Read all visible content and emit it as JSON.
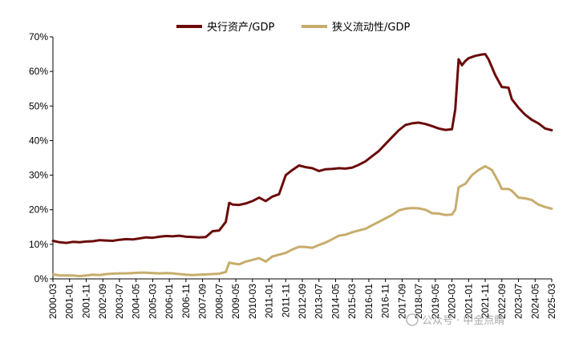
{
  "chart_data": {
    "type": "line",
    "title": "",
    "xlabel": "",
    "ylabel": "",
    "ylim": [
      0,
      70
    ],
    "y_ticks": [
      "0%",
      "10%",
      "20%",
      "30%",
      "40%",
      "50%",
      "60%",
      "70%"
    ],
    "x_ticks": [
      "2000-03",
      "2001-01",
      "2001-11",
      "2002-09",
      "2003-07",
      "2004-05",
      "2005-03",
      "2006-01",
      "2006-11",
      "2007-09",
      "2008-07",
      "2009-05",
      "2010-03",
      "2011-01",
      "2011-11",
      "2012-09",
      "2013-07",
      "2014-05",
      "2015-03",
      "2016-01",
      "2016-11",
      "2017-09",
      "2018-07",
      "2019-05",
      "2020-03",
      "2021-01",
      "2021-11",
      "2022-09",
      "2023-07",
      "2024-05",
      "2025-03"
    ],
    "x_range": [
      "2000-03",
      "2025-03"
    ],
    "grid": false,
    "legend_position": "top-center",
    "series": [
      {
        "name": "央行资产/GDP",
        "color": "#6b0a0a",
        "points": [
          [
            "2000-03",
            11.0
          ],
          [
            "2000-07",
            10.6
          ],
          [
            "2000-11",
            10.4
          ],
          [
            "2001-03",
            10.7
          ],
          [
            "2001-07",
            10.6
          ],
          [
            "2001-11",
            10.8
          ],
          [
            "2002-03",
            10.9
          ],
          [
            "2002-07",
            11.2
          ],
          [
            "2002-11",
            11.1
          ],
          [
            "2003-03",
            11.0
          ],
          [
            "2003-07",
            11.3
          ],
          [
            "2003-11",
            11.5
          ],
          [
            "2004-03",
            11.4
          ],
          [
            "2004-07",
            11.7
          ],
          [
            "2004-11",
            12.0
          ],
          [
            "2005-03",
            11.9
          ],
          [
            "2005-07",
            12.2
          ],
          [
            "2005-11",
            12.4
          ],
          [
            "2006-03",
            12.3
          ],
          [
            "2006-07",
            12.5
          ],
          [
            "2006-11",
            12.2
          ],
          [
            "2007-03",
            12.1
          ],
          [
            "2007-07",
            12.0
          ],
          [
            "2007-11",
            12.1
          ],
          [
            "2008-03",
            13.8
          ],
          [
            "2008-07",
            14.0
          ],
          [
            "2008-11",
            16.5
          ],
          [
            "2009-01",
            22.0
          ],
          [
            "2009-03",
            21.5
          ],
          [
            "2009-07",
            21.4
          ],
          [
            "2009-11",
            21.8
          ],
          [
            "2010-03",
            22.5
          ],
          [
            "2010-07",
            23.5
          ],
          [
            "2010-11",
            22.5
          ],
          [
            "2011-03",
            23.8
          ],
          [
            "2011-07",
            24.5
          ],
          [
            "2011-11",
            30.0
          ],
          [
            "2012-03",
            31.5
          ],
          [
            "2012-07",
            32.8
          ],
          [
            "2012-11",
            32.3
          ],
          [
            "2013-03",
            32.0
          ],
          [
            "2013-07",
            31.2
          ],
          [
            "2013-11",
            31.7
          ],
          [
            "2014-03",
            31.8
          ],
          [
            "2014-07",
            32.0
          ],
          [
            "2014-11",
            31.9
          ],
          [
            "2015-03",
            32.2
          ],
          [
            "2015-07",
            33.0
          ],
          [
            "2015-11",
            34.0
          ],
          [
            "2016-03",
            35.5
          ],
          [
            "2016-07",
            37.0
          ],
          [
            "2016-11",
            39.0
          ],
          [
            "2017-03",
            41.0
          ],
          [
            "2017-07",
            43.0
          ],
          [
            "2017-11",
            44.5
          ],
          [
            "2018-03",
            45.0
          ],
          [
            "2018-07",
            45.2
          ],
          [
            "2018-11",
            44.8
          ],
          [
            "2019-03",
            44.2
          ],
          [
            "2019-07",
            43.5
          ],
          [
            "2019-11",
            43.1
          ],
          [
            "2020-03",
            43.3
          ],
          [
            "2020-05",
            49.0
          ],
          [
            "2020-07",
            63.5
          ],
          [
            "2020-09",
            61.8
          ],
          [
            "2020-11",
            63.0
          ],
          [
            "2021-01",
            63.8
          ],
          [
            "2021-05",
            64.5
          ],
          [
            "2021-09",
            64.9
          ],
          [
            "2021-11",
            65.0
          ],
          [
            "2022-01",
            63.5
          ],
          [
            "2022-05",
            59.0
          ],
          [
            "2022-09",
            55.5
          ],
          [
            "2023-01",
            55.3
          ],
          [
            "2023-03",
            52.0
          ],
          [
            "2023-07",
            49.5
          ],
          [
            "2023-11",
            47.5
          ],
          [
            "2024-03",
            46.0
          ],
          [
            "2024-07",
            45.0
          ],
          [
            "2024-11",
            43.5
          ],
          [
            "2025-03",
            43.0
          ]
        ]
      },
      {
        "name": "狭义流动性/GDP",
        "color": "#c7ad6c",
        "points": [
          [
            "2000-03",
            1.3
          ],
          [
            "2000-07",
            1.0
          ],
          [
            "2001-03",
            1.0
          ],
          [
            "2001-07",
            0.8
          ],
          [
            "2001-11",
            1.0
          ],
          [
            "2002-03",
            1.2
          ],
          [
            "2002-07",
            1.1
          ],
          [
            "2002-11",
            1.4
          ],
          [
            "2003-03",
            1.5
          ],
          [
            "2003-07",
            1.6
          ],
          [
            "2003-11",
            1.6
          ],
          [
            "2004-03",
            1.7
          ],
          [
            "2004-07",
            1.8
          ],
          [
            "2004-11",
            1.8
          ],
          [
            "2005-03",
            1.7
          ],
          [
            "2005-07",
            1.6
          ],
          [
            "2005-11",
            1.7
          ],
          [
            "2006-03",
            1.6
          ],
          [
            "2006-07",
            1.4
          ],
          [
            "2006-11",
            1.2
          ],
          [
            "2007-03",
            1.1
          ],
          [
            "2007-07",
            1.2
          ],
          [
            "2007-11",
            1.3
          ],
          [
            "2008-03",
            1.4
          ],
          [
            "2008-07",
            1.5
          ],
          [
            "2008-11",
            2.0
          ],
          [
            "2009-01",
            4.7
          ],
          [
            "2009-03",
            4.5
          ],
          [
            "2009-07",
            4.2
          ],
          [
            "2009-11",
            5.0
          ],
          [
            "2010-03",
            5.5
          ],
          [
            "2010-07",
            6.0
          ],
          [
            "2010-11",
            5.0
          ],
          [
            "2011-03",
            6.5
          ],
          [
            "2011-07",
            7.0
          ],
          [
            "2011-11",
            7.5
          ],
          [
            "2012-03",
            8.5
          ],
          [
            "2012-07",
            9.3
          ],
          [
            "2012-11",
            9.2
          ],
          [
            "2013-03",
            9.0
          ],
          [
            "2013-07",
            9.8
          ],
          [
            "2013-11",
            10.5
          ],
          [
            "2014-03",
            11.5
          ],
          [
            "2014-07",
            12.5
          ],
          [
            "2014-11",
            12.8
          ],
          [
            "2015-03",
            13.5
          ],
          [
            "2015-07",
            14.0
          ],
          [
            "2015-11",
            14.5
          ],
          [
            "2016-03",
            15.5
          ],
          [
            "2016-07",
            16.5
          ],
          [
            "2016-11",
            17.5
          ],
          [
            "2017-03",
            18.5
          ],
          [
            "2017-07",
            19.8
          ],
          [
            "2017-11",
            20.3
          ],
          [
            "2018-03",
            20.5
          ],
          [
            "2018-07",
            20.4
          ],
          [
            "2018-11",
            20.0
          ],
          [
            "2019-03",
            19.0
          ],
          [
            "2019-07",
            18.9
          ],
          [
            "2019-11",
            18.5
          ],
          [
            "2020-03",
            18.6
          ],
          [
            "2020-05",
            20.0
          ],
          [
            "2020-07",
            26.5
          ],
          [
            "2020-11",
            27.5
          ],
          [
            "2021-03",
            30.0
          ],
          [
            "2021-07",
            31.5
          ],
          [
            "2021-11",
            32.6
          ],
          [
            "2022-03",
            31.5
          ],
          [
            "2022-07",
            28.0
          ],
          [
            "2022-09",
            26.0
          ],
          [
            "2023-01",
            26.0
          ],
          [
            "2023-03",
            25.5
          ],
          [
            "2023-07",
            23.5
          ],
          [
            "2023-11",
            23.3
          ],
          [
            "2024-03",
            22.8
          ],
          [
            "2024-07",
            21.5
          ],
          [
            "2024-11",
            20.8
          ],
          [
            "2025-03",
            20.3
          ]
        ]
      }
    ]
  },
  "watermark": {
    "text": "公众号 · 中金点睛"
  }
}
